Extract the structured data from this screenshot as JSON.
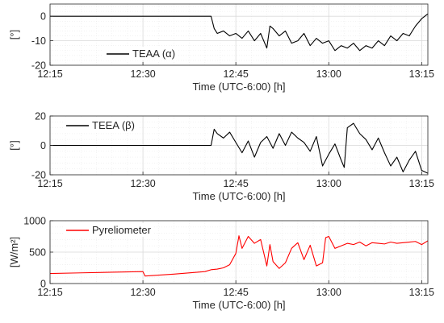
{
  "figure": {
    "panels": [
      {
        "id": "alpha",
        "xlabel": "Time (UTC-6:00) [h]",
        "ylabel": "[°]",
        "legend_label": "TEAA (α)",
        "legend_position": "bottom-left",
        "color": "#000000"
      },
      {
        "id": "beta",
        "xlabel": "Time (UTC-6:00) [h]",
        "ylabel": "[°]",
        "legend_label": "TEEA (β)",
        "legend_position": "top-left",
        "color": "#000000"
      },
      {
        "id": "pyr",
        "xlabel": "Time (UTC-6:00) [h]",
        "ylabel": "[W/m²]",
        "legend_label": "Pyreliometer",
        "legend_position": "top-left",
        "color": "#ff0000"
      }
    ]
  },
  "chart_data": [
    {
      "type": "line",
      "xlabel": "Time (UTC-6:00) [h]",
      "ylabel": "[°]",
      "x_ticks": [
        "12:15",
        "12:30",
        "12:45",
        "13:00",
        "13:15"
      ],
      "x_range": [
        "12:15",
        "13:16"
      ],
      "ylim": [
        -20,
        5
      ],
      "y_ticks": [
        -20,
        -10,
        0
      ],
      "grid": true,
      "legend_position": "bottom-left",
      "series": [
        {
          "name": "TEAA (α)",
          "color": "#000000",
          "x": [
            "12:15",
            "12:41",
            "12:41:30",
            "12:42",
            "12:43",
            "12:44",
            "12:45",
            "12:46",
            "12:47",
            "12:48",
            "12:49",
            "12:50",
            "12:50:30",
            "12:51",
            "12:52",
            "12:53",
            "12:54",
            "12:55",
            "12:56",
            "12:57",
            "12:58",
            "12:59",
            "13:00",
            "13:01",
            "13:02",
            "13:03",
            "13:04",
            "13:05",
            "13:06",
            "13:07",
            "13:08",
            "13:09",
            "13:10",
            "13:11",
            "13:12",
            "13:13",
            "13:14",
            "13:15",
            "13:16"
          ],
          "values": [
            0,
            0,
            -5,
            -7,
            -6,
            -8,
            -7,
            -9,
            -6,
            -10,
            -7,
            -13,
            -4,
            -5,
            -8,
            -6,
            -11,
            -10,
            -7,
            -12,
            -9,
            -11,
            -10,
            -14,
            -12,
            -13,
            -11,
            -14,
            -12,
            -13,
            -10,
            -12,
            -8,
            -10,
            -7,
            -8,
            -4,
            -1,
            1
          ]
        }
      ]
    },
    {
      "type": "line",
      "xlabel": "Time (UTC-6:00) [h]",
      "ylabel": "[°]",
      "x_ticks": [
        "12:15",
        "12:30",
        "12:45",
        "13:00",
        "13:15"
      ],
      "x_range": [
        "12:15",
        "13:16"
      ],
      "ylim": [
        -20,
        20
      ],
      "y_ticks": [
        -20,
        0,
        20
      ],
      "grid": true,
      "legend_position": "top-left",
      "series": [
        {
          "name": "TEEA (β)",
          "color": "#000000",
          "x": [
            "12:15",
            "12:41",
            "12:41:30",
            "12:42",
            "12:43",
            "12:44",
            "12:45",
            "12:46",
            "12:47",
            "12:48",
            "12:49",
            "12:50",
            "12:51",
            "12:52",
            "12:53",
            "12:54",
            "12:55",
            "12:56",
            "12:57",
            "12:58",
            "12:59",
            "13:00",
            "13:01",
            "13:02",
            "13:02:30",
            "13:03",
            "13:04",
            "13:05",
            "13:06",
            "13:07",
            "13:08",
            "13:09",
            "13:10",
            "13:11",
            "13:12",
            "13:13",
            "13:14",
            "13:15",
            "13:16"
          ],
          "values": [
            0,
            0,
            11,
            8,
            5,
            9,
            2,
            -5,
            3,
            -8,
            2,
            6,
            -2,
            8,
            0,
            9,
            5,
            2,
            -4,
            6,
            -14,
            -6,
            1,
            -10,
            -15,
            12,
            15,
            8,
            4,
            -3,
            5,
            -5,
            -14,
            -8,
            -18,
            -10,
            -4,
            -17,
            -19
          ]
        }
      ]
    },
    {
      "type": "line",
      "xlabel": "Time (UTC-6:00) [h]",
      "ylabel": "[W/m²]",
      "x_ticks": [
        "12:15",
        "12:30",
        "12:45",
        "13:00",
        "13:15"
      ],
      "x_range": [
        "12:15",
        "13:16"
      ],
      "ylim": [
        0,
        1000
      ],
      "y_ticks": [
        0,
        500,
        1000
      ],
      "grid": true,
      "legend_position": "top-left",
      "series": [
        {
          "name": "Pyreliometer",
          "color": "#ff0000",
          "x": [
            "12:15",
            "12:20",
            "12:25",
            "12:30",
            "12:30:20",
            "12:35",
            "12:40",
            "12:41",
            "12:42",
            "12:43",
            "12:44",
            "12:45",
            "12:45:30",
            "12:46",
            "12:47",
            "12:48",
            "12:49",
            "12:50",
            "12:50:30",
            "12:51",
            "12:52",
            "12:53",
            "12:54",
            "12:55",
            "12:56",
            "12:57",
            "12:58",
            "12:59",
            "12:59:30",
            "13:00",
            "13:01",
            "13:02",
            "13:03",
            "13:04",
            "13:05",
            "13:06",
            "13:07",
            "13:08",
            "13:09",
            "13:10",
            "13:11",
            "13:12",
            "13:13",
            "13:14",
            "13:15",
            "13:16"
          ],
          "values": [
            160,
            170,
            180,
            190,
            120,
            150,
            190,
            220,
            230,
            250,
            300,
            480,
            760,
            560,
            750,
            640,
            700,
            280,
            620,
            350,
            240,
            330,
            560,
            650,
            380,
            610,
            280,
            330,
            730,
            750,
            560,
            600,
            640,
            620,
            660,
            600,
            650,
            640,
            630,
            660,
            640,
            650,
            660,
            670,
            620,
            680
          ]
        }
      ]
    }
  ]
}
